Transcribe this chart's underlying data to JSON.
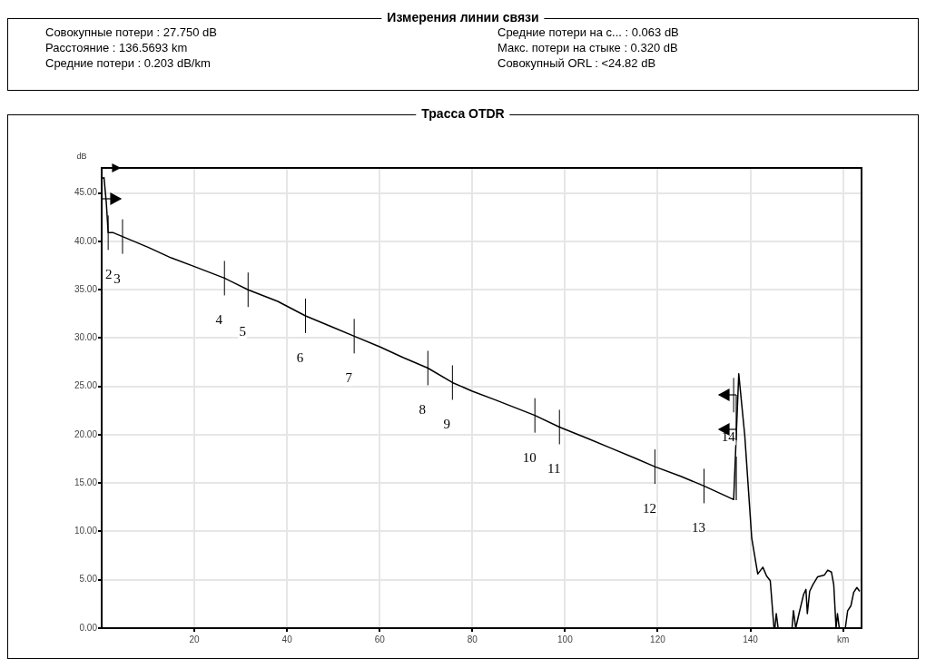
{
  "chart_data": {
    "type": "line",
    "title": "Трасса OTDR",
    "subtitle": "Измерения линии связи",
    "ylabel": "dB",
    "annotations": [
      "Совокупные потери : 27.750 dB",
      "Расстояние : 136.5693 km",
      "Средние потери : 0.203 dB/km",
      "Средние потери на с... : 0.063 dB",
      "Макс. потери на стыке : 0.320 dB",
      "Совокупный ORL : <24.82 dB",
      {
        "text": "2",
        "x": 1.4,
        "y": 40.9
      },
      {
        "text": "3",
        "x": 4.5,
        "y": 40.5
      },
      {
        "text": "4",
        "x": 26.5,
        "y": 36.2
      },
      {
        "text": "5",
        "x": 31.6,
        "y": 35.0
      },
      {
        "text": "6",
        "x": 44,
        "y": 32.3
      },
      {
        "text": "7",
        "x": 54.5,
        "y": 30.2
      },
      {
        "text": "8",
        "x": 70.4,
        "y": 26.9
      },
      {
        "text": "9",
        "x": 75.7,
        "y": 25.4
      },
      {
        "text": "10",
        "x": 93.5,
        "y": 22.0
      },
      {
        "text": "11",
        "x": 98.8,
        "y": 20.8
      },
      {
        "text": "12",
        "x": 119.4,
        "y": 16.7
      },
      {
        "text": "13",
        "x": 130,
        "y": 14.7
      },
      {
        "text": "14",
        "x": 136.4,
        "y": 24.1
      }
    ],
    "series": [
      {
        "color": "#000000",
        "x": [
          0,
          0.5,
          1,
          1.4,
          2.5,
          4.5,
          10,
          15,
          20,
          26.5,
          31.6,
          38,
          44,
          50,
          54.5,
          60,
          65,
          70.4,
          75.7,
          80,
          85,
          93.5,
          98.8,
          105,
          110,
          115,
          119.4,
          125,
          130,
          136.4,
          137.5,
          138.8,
          140.3,
          141.6,
          142.7,
          143.5,
          144.3,
          145.1,
          145.3,
          145.6,
          146,
          149,
          149.3,
          149.8,
          150.5,
          151,
          151.5,
          152,
          152.3,
          152.8,
          153.5,
          154.5,
          156,
          156.7,
          157.5,
          158,
          158.5,
          158.8,
          159.2,
          160.5,
          161,
          161.7,
          162.3,
          163,
          163.6
        ],
        "values": [
          46.5,
          46.6,
          44,
          40.9,
          40.9,
          40.5,
          39.4,
          38.3,
          37.4,
          36.2,
          35.0,
          33.8,
          32.3,
          31.1,
          30.2,
          29.1,
          28.0,
          26.9,
          25.4,
          24.5,
          23.6,
          22.0,
          20.8,
          19.6,
          18.6,
          17.6,
          16.7,
          15.7,
          14.7,
          13.3,
          26.3,
          19.9,
          9.3,
          5.6,
          6.3,
          5.4,
          4.9,
          0,
          0,
          1.5,
          0,
          0,
          1.8,
          0,
          1.5,
          2.5,
          3.5,
          4,
          1.5,
          3.8,
          4.5,
          5.3,
          5.5,
          6,
          5.8,
          4.5,
          0,
          1.5,
          0,
          0,
          1.8,
          2.3,
          3.7,
          4.2,
          3.8
        ]
      }
    ],
    "xlim": [
      0,
      164
    ],
    "xticks": [
      20,
      40,
      60,
      80,
      100,
      120,
      140,
      {
        "value": 160,
        "label": "km"
      }
    ],
    "ylim": [
      0,
      47.6
    ],
    "yticks": [
      {
        "value": 0,
        "label": "0.00"
      },
      {
        "value": 5,
        "label": "5.00"
      },
      {
        "value": 10,
        "label": "10.00"
      },
      {
        "value": 15,
        "label": "15.00"
      },
      {
        "value": 20,
        "label": "20.00"
      },
      {
        "value": 25,
        "label": "25.00"
      },
      {
        "value": 30,
        "label": "30.00"
      },
      {
        "value": 35,
        "label": "35.00"
      },
      {
        "value": 40,
        "label": "40.00"
      },
      {
        "value": 45,
        "label": "45.00"
      }
    ],
    "grid": true,
    "legend": false,
    "marker": "none",
    "line_style": "solid"
  }
}
